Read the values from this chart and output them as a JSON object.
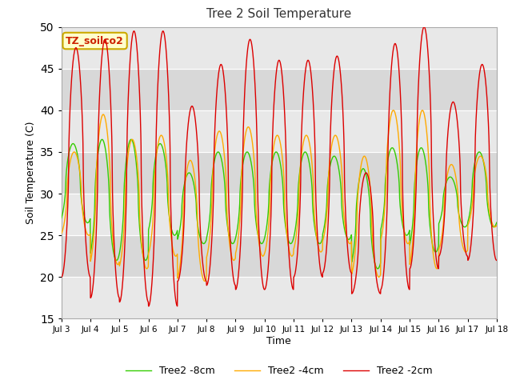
{
  "title": "Tree 2 Soil Temperature",
  "ylabel": "Soil Temperature (C)",
  "xlabel": "Time",
  "ylim": [
    15,
    50
  ],
  "annotation": "TZ_soilco2",
  "line_colors": [
    "#dd0000",
    "#ffaa00",
    "#33cc00"
  ],
  "line_labels": [
    "Tree2 -2cm",
    "Tree2 -4cm",
    "Tree2 -8cm"
  ],
  "x_tick_labels": [
    "Jul 3",
    "Jul 4",
    "Jul 5",
    "Jul 6",
    "Jul 7",
    "Jul 8",
    "Jul 9",
    "Jul 10",
    "Jul 11",
    "Jul 12",
    "Jul 13",
    "Jul 14",
    "Jul 15",
    "Jul 16",
    "Jul 17",
    "Jul 18"
  ],
  "bg_color": "#ffffff",
  "plot_bg": "#d8d8d8",
  "band_color": "#e8e8e8",
  "day_mins_2cm": [
    20.0,
    17.5,
    17.0,
    16.5,
    19.5,
    19.0,
    18.5,
    18.5,
    20.0,
    20.5,
    18.0,
    18.5,
    21.0,
    22.5,
    22.0
  ],
  "day_maxs_2cm": [
    47.5,
    48.5,
    49.5,
    49.5,
    40.5,
    45.5,
    48.5,
    46.0,
    46.0,
    46.5,
    32.5,
    48.0,
    50.0,
    41.0,
    45.5
  ],
  "day_mins_4cm": [
    25.0,
    21.5,
    21.0,
    22.5,
    19.5,
    22.0,
    22.5,
    22.5,
    23.0,
    24.0,
    20.0,
    24.0,
    21.0,
    23.0,
    26.0
  ],
  "day_maxs_4cm": [
    35.0,
    39.5,
    36.5,
    37.0,
    34.0,
    37.5,
    38.0,
    37.0,
    37.0,
    37.0,
    34.5,
    40.0,
    40.0,
    33.5,
    34.5
  ],
  "day_mins_8cm": [
    26.5,
    22.0,
    22.0,
    25.0,
    24.0,
    24.0,
    24.0,
    24.0,
    24.0,
    24.5,
    21.0,
    25.0,
    23.0,
    26.0,
    26.0
  ],
  "day_maxs_8cm": [
    36.0,
    36.5,
    36.5,
    36.0,
    32.5,
    35.0,
    35.0,
    35.0,
    35.0,
    34.5,
    33.0,
    35.5,
    35.5,
    32.0,
    35.0
  ],
  "phase_2cm": 0.0,
  "phase_4cm": 0.06,
  "phase_8cm": 0.1
}
